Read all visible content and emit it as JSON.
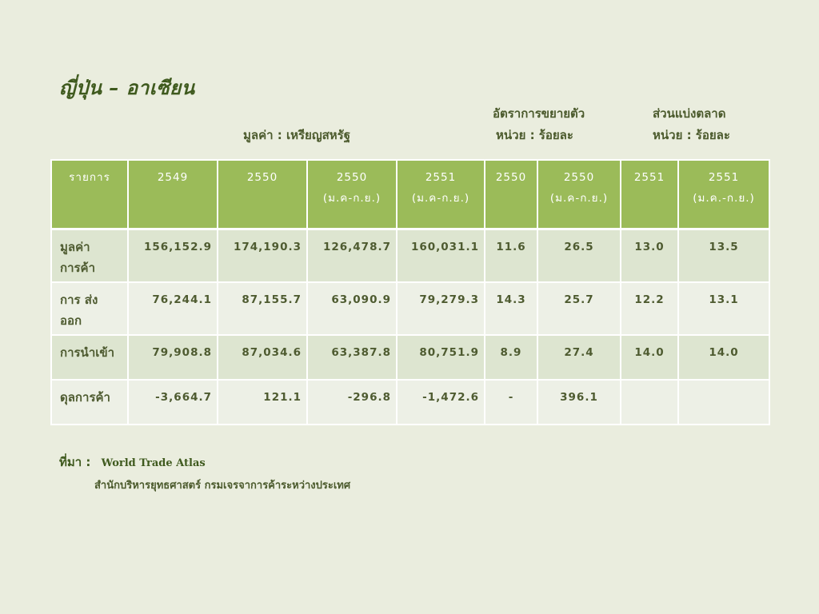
{
  "title": "ญี่ปุ่น – อาเซียน",
  "headers": {
    "value_unit": "มูลค่า : เหรียญสหรัฐ",
    "growth_title": "อัตราการขยายตัว",
    "growth_unit": "หน่วย : ร้อยละ",
    "share_title": "ส่วนแบ่งตลาด",
    "share_unit": "หน่วย : ร้อยละ"
  },
  "table": {
    "columns": [
      {
        "main": "รายการ",
        "sub": ""
      },
      {
        "main": "2549",
        "sub": ""
      },
      {
        "main": "2550",
        "sub": ""
      },
      {
        "main": "2550",
        "sub": "(ม.ค-ก.ย.)"
      },
      {
        "main": "2551",
        "sub": "(ม.ค-ก.ย.)"
      },
      {
        "main": "2550",
        "sub": ""
      },
      {
        "main": "2550",
        "sub": "(ม.ค-ก.ย.)"
      },
      {
        "main": "2551",
        "sub": ""
      },
      {
        "main": "2551",
        "sub": "(ม.ค.-ก.ย.)"
      }
    ],
    "rows": [
      {
        "label": "มูลค่า การค้า",
        "cells": [
          "156,152.9",
          "174,190.3",
          "126,478.7",
          "160,031.1",
          "11.6",
          "26.5",
          "13.0",
          "13.5"
        ]
      },
      {
        "label": "การ ส่งออก",
        "cells": [
          "76,244.1",
          "87,155.7",
          "63,090.9",
          "79,279.3",
          "14.3",
          "25.7",
          "12.2",
          "13.1"
        ]
      },
      {
        "label": "การนำเข้า",
        "cells": [
          "79,908.8",
          "87,034.6",
          "63,387.8",
          "80,751.9",
          "8.9",
          "27.4",
          "14.0",
          "14.0"
        ]
      },
      {
        "label": "ดุลการค้า",
        "cells": [
          "-3,664.7",
          "121.1",
          "-296.8",
          "-1,472.6",
          "-",
          "396.1",
          "",
          ""
        ]
      }
    ]
  },
  "source": {
    "label": "ที่มา :",
    "line1": "World Trade Atlas",
    "line2": "สำนักบริหารยุทธศาสตร์ กรมเจรจาการค้าระหว่างประเทศ"
  }
}
